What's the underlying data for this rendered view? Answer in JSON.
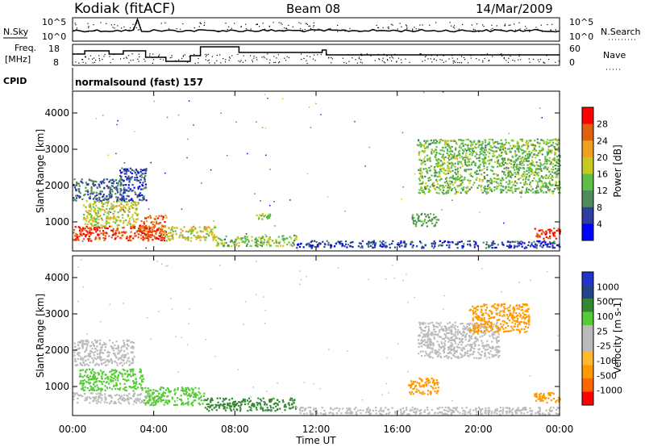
{
  "header": {
    "station": "Kodiak (fitACF)",
    "beam": "Beam 08",
    "date": "14/Mar/2009"
  },
  "meta_labels": {
    "nsky": "N.Sky",
    "nsearch": "N.Search",
    "freq_line1": "Freq.",
    "freq_line2": "[MHz]",
    "nave": "Nave",
    "cpid": "CPID",
    "program": "normalsound (fast) 157"
  },
  "meta_ticks": {
    "sky_left": [
      "10^5",
      "10^0"
    ],
    "sky_right": [
      "10^5",
      "10^0"
    ],
    "freq_left": [
      "18",
      "8"
    ],
    "freq_right": [
      "60",
      "0"
    ]
  },
  "colors": {
    "power": [
      "#0000ff",
      "#2e3d9e",
      "#4f8a5b",
      "#5bbf45",
      "#c8c820",
      "#f0a020",
      "#e06010",
      "#ff0000"
    ],
    "velocity": [
      "#ff0000",
      "#ff6600",
      "#ff9900",
      "#ffb830",
      "#bbbbbb",
      "#bbbbbb",
      "#55cc33",
      "#338833",
      "#224488",
      "#2233cc"
    ]
  },
  "chart_data": [
    {
      "type": "heatmap",
      "title": "Power",
      "ylabel": "Slant Range [km]",
      "xlabel": "",
      "x_ticks": [
        "00:00",
        "04:00",
        "08:00",
        "12:00",
        "16:00",
        "20:00",
        "00:00"
      ],
      "y_ticks": [
        "1000",
        "2000",
        "3000",
        "4000"
      ],
      "ylim": [
        200,
        4600
      ],
      "colorbar_label": "Power [dB]",
      "colorbar_ticks": [
        "4",
        "8",
        "12",
        "16",
        "20",
        "24",
        "28"
      ],
      "colorbar_range": [
        0,
        32
      ],
      "regions": [
        {
          "t0": 0.0,
          "t1": 4.5,
          "r0": 500,
          "r1": 900,
          "value": 28
        },
        {
          "t0": 3.2,
          "t1": 4.6,
          "r0": 600,
          "r1": 1200,
          "value": 26
        },
        {
          "t0": 4.5,
          "t1": 7.0,
          "r0": 500,
          "r1": 900,
          "value": 18
        },
        {
          "t0": 7.0,
          "t1": 11.0,
          "r0": 350,
          "r1": 650,
          "value": 14
        },
        {
          "t0": 11.0,
          "t1": 24.0,
          "r0": 300,
          "r1": 500,
          "value": 6
        },
        {
          "t0": 0.5,
          "t1": 3.2,
          "r0": 900,
          "r1": 1600,
          "value": 18
        },
        {
          "t0": 0.0,
          "t1": 2.5,
          "r0": 1600,
          "r1": 2200,
          "value": 8
        },
        {
          "t0": 2.3,
          "t1": 3.6,
          "r0": 1600,
          "r1": 2500,
          "value": 6
        },
        {
          "t0": 16.7,
          "t1": 18.0,
          "r0": 900,
          "r1": 1250,
          "value": 12
        },
        {
          "t0": 17.0,
          "t1": 24.0,
          "r0": 1800,
          "r1": 3300,
          "value": 14
        },
        {
          "t0": 22.7,
          "t1": 24.0,
          "r0": 550,
          "r1": 850,
          "value": 28
        },
        {
          "t0": 9.0,
          "t1": 9.8,
          "r0": 1100,
          "r1": 1250,
          "value": 14
        }
      ]
    },
    {
      "type": "heatmap",
      "title": "Velocity",
      "ylabel": "Slant Range [km]",
      "xlabel": "Time UT",
      "x_ticks": [
        "00:00",
        "04:00",
        "08:00",
        "12:00",
        "16:00",
        "20:00",
        "00:00"
      ],
      "y_ticks": [
        "1000",
        "2000",
        "3000",
        "4000"
      ],
      "ylim": [
        200,
        4600
      ],
      "colorbar_label": "Velocity [m s-1]",
      "colorbar_ticks": [
        "1000",
        "500",
        "100",
        "25",
        "-25",
        "-100",
        "-500",
        "-1000"
      ],
      "regions": [
        {
          "t0": 0.0,
          "t1": 4.0,
          "r0": 550,
          "r1": 850,
          "value": 0
        },
        {
          "t0": 0.3,
          "t1": 3.5,
          "r0": 900,
          "r1": 1500,
          "value": 60
        },
        {
          "t0": 3.5,
          "t1": 6.5,
          "r0": 500,
          "r1": 1000,
          "value": 80
        },
        {
          "t0": 6.5,
          "t1": 11.0,
          "r0": 350,
          "r1": 700,
          "value": 120
        },
        {
          "t0": 11.0,
          "t1": 24.0,
          "r0": 250,
          "r1": 450,
          "value": 0
        },
        {
          "t0": 0.0,
          "t1": 3.0,
          "r0": 1600,
          "r1": 2300,
          "value": 0
        },
        {
          "t0": 16.5,
          "t1": 18.0,
          "r0": 800,
          "r1": 1250,
          "value": -300
        },
        {
          "t0": 17.0,
          "t1": 21.0,
          "r0": 1800,
          "r1": 2800,
          "value": 0
        },
        {
          "t0": 19.5,
          "t1": 22.5,
          "r0": 2500,
          "r1": 3300,
          "value": -300
        },
        {
          "t0": 22.7,
          "t1": 24.0,
          "r0": 550,
          "r1": 850,
          "value": -150
        }
      ]
    }
  ]
}
